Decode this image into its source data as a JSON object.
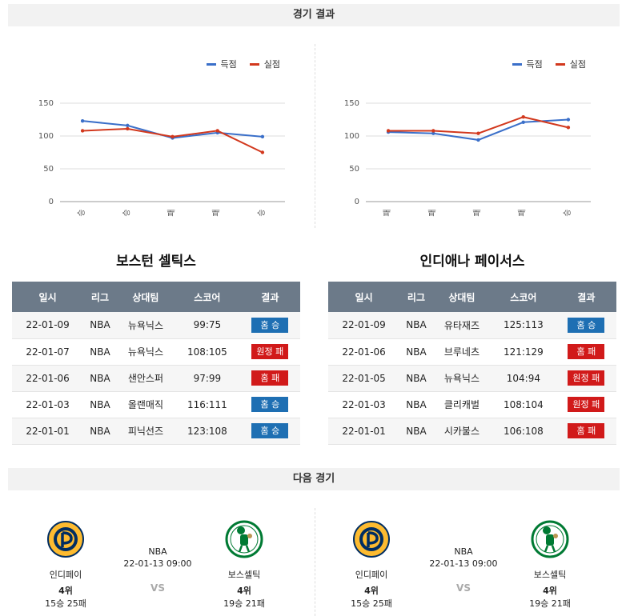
{
  "sections": {
    "results_title": "경기 결과",
    "next_title": "다음 경기"
  },
  "legend": {
    "scored": "득점",
    "conceded": "실점"
  },
  "colors": {
    "scored": "#3a6fc9",
    "conceded": "#d2381d",
    "win": "#1e6fb3",
    "loss": "#d11a1a",
    "header": "#6c7a89"
  },
  "chart_data": [
    {
      "type": "line",
      "categories": [
        "승",
        "승",
        "패",
        "패",
        "승"
      ],
      "series": [
        {
          "name": "득점",
          "values": [
            123,
            116,
            97,
            105,
            99
          ]
        },
        {
          "name": "실점",
          "values": [
            108,
            111,
            99,
            108,
            75
          ]
        }
      ],
      "yticks": [
        0,
        50,
        100,
        150
      ],
      "ylim": [
        0,
        150
      ],
      "grid": true,
      "legend": "top-right"
    },
    {
      "type": "line",
      "categories": [
        "패",
        "패",
        "패",
        "패",
        "승"
      ],
      "series": [
        {
          "name": "득점",
          "values": [
            106,
            104,
            94,
            121,
            125
          ]
        },
        {
          "name": "실점",
          "values": [
            108,
            108,
            104,
            129,
            113
          ]
        }
      ],
      "yticks": [
        0,
        50,
        100,
        150
      ],
      "ylim": [
        0,
        150
      ],
      "grid": true,
      "legend": "top-right"
    }
  ],
  "teams": [
    {
      "title": "보스턴 셀틱스",
      "headers": [
        "일시",
        "리그",
        "상대팀",
        "스코어",
        "결과"
      ],
      "rows": [
        {
          "date": "22-01-09",
          "league": "NBA",
          "opponent": "뉴욕닉스",
          "score": "99:75",
          "result": "홈 승",
          "win": true
        },
        {
          "date": "22-01-07",
          "league": "NBA",
          "opponent": "뉴욕닉스",
          "score": "108:105",
          "result": "원정 패",
          "win": false
        },
        {
          "date": "22-01-06",
          "league": "NBA",
          "opponent": "샌안스퍼",
          "score": "97:99",
          "result": "홈 패",
          "win": false
        },
        {
          "date": "22-01-03",
          "league": "NBA",
          "opponent": "올랜매직",
          "score": "116:111",
          "result": "홈 승",
          "win": true
        },
        {
          "date": "22-01-01",
          "league": "NBA",
          "opponent": "피닉선즈",
          "score": "123:108",
          "result": "홈 승",
          "win": true
        }
      ]
    },
    {
      "title": "인디애나 페이서스",
      "headers": [
        "일시",
        "리그",
        "상대팀",
        "스코어",
        "결과"
      ],
      "rows": [
        {
          "date": "22-01-09",
          "league": "NBA",
          "opponent": "유타재즈",
          "score": "125:113",
          "result": "홈 승",
          "win": true
        },
        {
          "date": "22-01-06",
          "league": "NBA",
          "opponent": "브루네츠",
          "score": "121:129",
          "result": "홈 패",
          "win": false
        },
        {
          "date": "22-01-05",
          "league": "NBA",
          "opponent": "뉴욕닉스",
          "score": "104:94",
          "result": "원정 패",
          "win": false
        },
        {
          "date": "22-01-03",
          "league": "NBA",
          "opponent": "클리캐벌",
          "score": "108:104",
          "result": "원정 패",
          "win": false
        },
        {
          "date": "22-01-01",
          "league": "NBA",
          "opponent": "시카불스",
          "score": "106:108",
          "result": "홈 패",
          "win": false
        }
      ]
    }
  ],
  "next_matches": [
    {
      "home": {
        "name": "인디페이",
        "rank": "4위",
        "record": "15승 25패"
      },
      "away": {
        "name": "보스셀틱",
        "rank": "4위",
        "record": "19승 21패"
      },
      "league": "NBA",
      "datetime": "22-01-13 09:00",
      "vs": "VS"
    },
    {
      "home": {
        "name": "인디페이",
        "rank": "4위",
        "record": "15승 25패"
      },
      "away": {
        "name": "보스셀틱",
        "rank": "4위",
        "record": "19승 21패"
      },
      "league": "NBA",
      "datetime": "22-01-13 09:00",
      "vs": "VS"
    }
  ]
}
